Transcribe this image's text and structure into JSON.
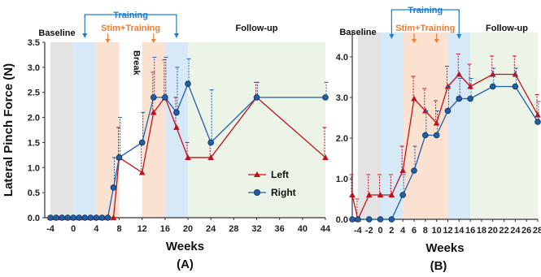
{
  "colors": {
    "left": "#c0121e",
    "right": "#1f5fa8",
    "training": "#1f7fd0",
    "stim": "#ee7d31",
    "baseline_band": "#e3e3e3",
    "training_band": "#d7e8f6",
    "stim_band": "#fbe1cf",
    "followup_band": "#ebf4e6"
  },
  "chart_data": [
    {
      "type": "line",
      "panel_label": "(A)",
      "ylabel": "Lateral Pinch Force (N)",
      "xlabel": "Weeks",
      "xlim": [
        -5,
        44
      ],
      "ylim": [
        0,
        3.5
      ],
      "x_ticks": [
        -4,
        0,
        4,
        8,
        12,
        16,
        20,
        24,
        28,
        32,
        36,
        40,
        44
      ],
      "y_ticks": [
        "0.0",
        "0.5",
        "1.0",
        "1.5",
        "2.0",
        "2.5",
        "3.0",
        "3.5"
      ],
      "phase_labels": {
        "baseline": "Baseline",
        "training": "Training",
        "stim": "Stim+Training",
        "break": "Break",
        "followup": "Follow-up"
      },
      "bands": [
        {
          "kind": "baseline",
          "from": -4,
          "to": 0
        },
        {
          "kind": "training",
          "from": 0,
          "to": 4
        },
        {
          "kind": "stim",
          "from": 4,
          "to": 8
        },
        {
          "kind": "stim",
          "from": 12,
          "to": 16
        },
        {
          "kind": "training",
          "from": 16,
          "to": 20
        },
        {
          "kind": "followup",
          "from": 20,
          "to": 44
        }
      ],
      "legend": {
        "position": "center-right",
        "entries": [
          "Left",
          "Right"
        ]
      },
      "series": [
        {
          "name": "Left",
          "marker": "triangle",
          "x": [
            -4,
            -3,
            -2,
            -1,
            0,
            1,
            2,
            3,
            4,
            5,
            6,
            7,
            8,
            12,
            14,
            16,
            18,
            20,
            24,
            32,
            44
          ],
          "y": [
            0,
            0,
            0,
            0,
            0,
            0,
            0,
            0,
            0,
            0,
            0,
            0,
            1.2,
            0.9,
            2.1,
            2.4,
            1.8,
            1.2,
            1.2,
            2.4,
            1.2
          ],
          "err": [
            0,
            0,
            0,
            0,
            0,
            0,
            0,
            0,
            0,
            0,
            0,
            0,
            0.6,
            0.6,
            0.8,
            0.75,
            0.6,
            0.3,
            0.3,
            0.3,
            0.6
          ]
        },
        {
          "name": "Right",
          "marker": "circle",
          "x": [
            -4,
            -3,
            -2,
            -1,
            0,
            1,
            2,
            3,
            4,
            5,
            6,
            7,
            8,
            12,
            14,
            16,
            18,
            20,
            24,
            32,
            44
          ],
          "y": [
            0,
            0,
            0,
            0,
            0,
            0,
            0,
            0,
            0,
            0,
            0,
            0.6,
            1.2,
            1.5,
            2.4,
            2.4,
            2.1,
            2.67,
            1.5,
            2.4,
            2.4
          ],
          "err": [
            0,
            0,
            0,
            0,
            0,
            0,
            0,
            0,
            0,
            0,
            0,
            0.6,
            0.8,
            0.6,
            0.8,
            0.8,
            0.9,
            0.5,
            1.05,
            0.3,
            0.3
          ]
        }
      ]
    },
    {
      "type": "line",
      "panel_label": "(B)",
      "xlabel": "Weeks",
      "xlim": [
        -5,
        28
      ],
      "ylim": [
        0,
        4.6
      ],
      "x_ticks": [
        -4,
        -2,
        0,
        2,
        4,
        6,
        8,
        10,
        12,
        14,
        16,
        18,
        20,
        22,
        24,
        26,
        28
      ],
      "y_ticks": [
        "0.0",
        "1.0",
        "2.0",
        "3.0",
        "4.0"
      ],
      "phase_labels": {
        "baseline": "Baseline",
        "training": "Training",
        "stim": "Stim+Training",
        "followup": "Follow-up"
      },
      "bands": [
        {
          "kind": "baseline",
          "from": -4,
          "to": 0
        },
        {
          "kind": "training",
          "from": 0,
          "to": 4
        },
        {
          "kind": "stim",
          "from": 4,
          "to": 12
        },
        {
          "kind": "training",
          "from": 12,
          "to": 16
        },
        {
          "kind": "followup",
          "from": 16,
          "to": 28
        }
      ],
      "series": [
        {
          "name": "Left",
          "marker": "triangle",
          "x": [
            -5,
            -4,
            -2,
            0,
            2,
            4,
            6,
            8,
            10,
            12,
            14,
            16,
            20,
            24,
            28
          ],
          "y": [
            0.6,
            0,
            0.6,
            0.6,
            0.6,
            1.2,
            2.97,
            2.67,
            2.37,
            3.27,
            3.57,
            3.27,
            3.57,
            3.57,
            2.57
          ],
          "err": [
            0.5,
            0.5,
            0.5,
            0.5,
            0.5,
            0.6,
            0.55,
            0.55,
            0.55,
            0.5,
            0.5,
            0.55,
            0.45,
            0.45,
            0.5
          ]
        },
        {
          "name": "Right",
          "marker": "circle",
          "x": [
            -5,
            -4,
            -2,
            0,
            2,
            4,
            6,
            8,
            10,
            12,
            14,
            16,
            20,
            24,
            28
          ],
          "y": [
            0,
            0,
            0,
            0,
            0,
            0.6,
            1.2,
            2.07,
            2.07,
            2.67,
            2.97,
            2.97,
            3.27,
            3.27,
            2.4
          ],
          "err": [
            0,
            0,
            0,
            0,
            0,
            0.5,
            0.6,
            0.6,
            0.6,
            0.6,
            0.5,
            0.5,
            0.45,
            0.45,
            0.5
          ]
        }
      ]
    }
  ]
}
